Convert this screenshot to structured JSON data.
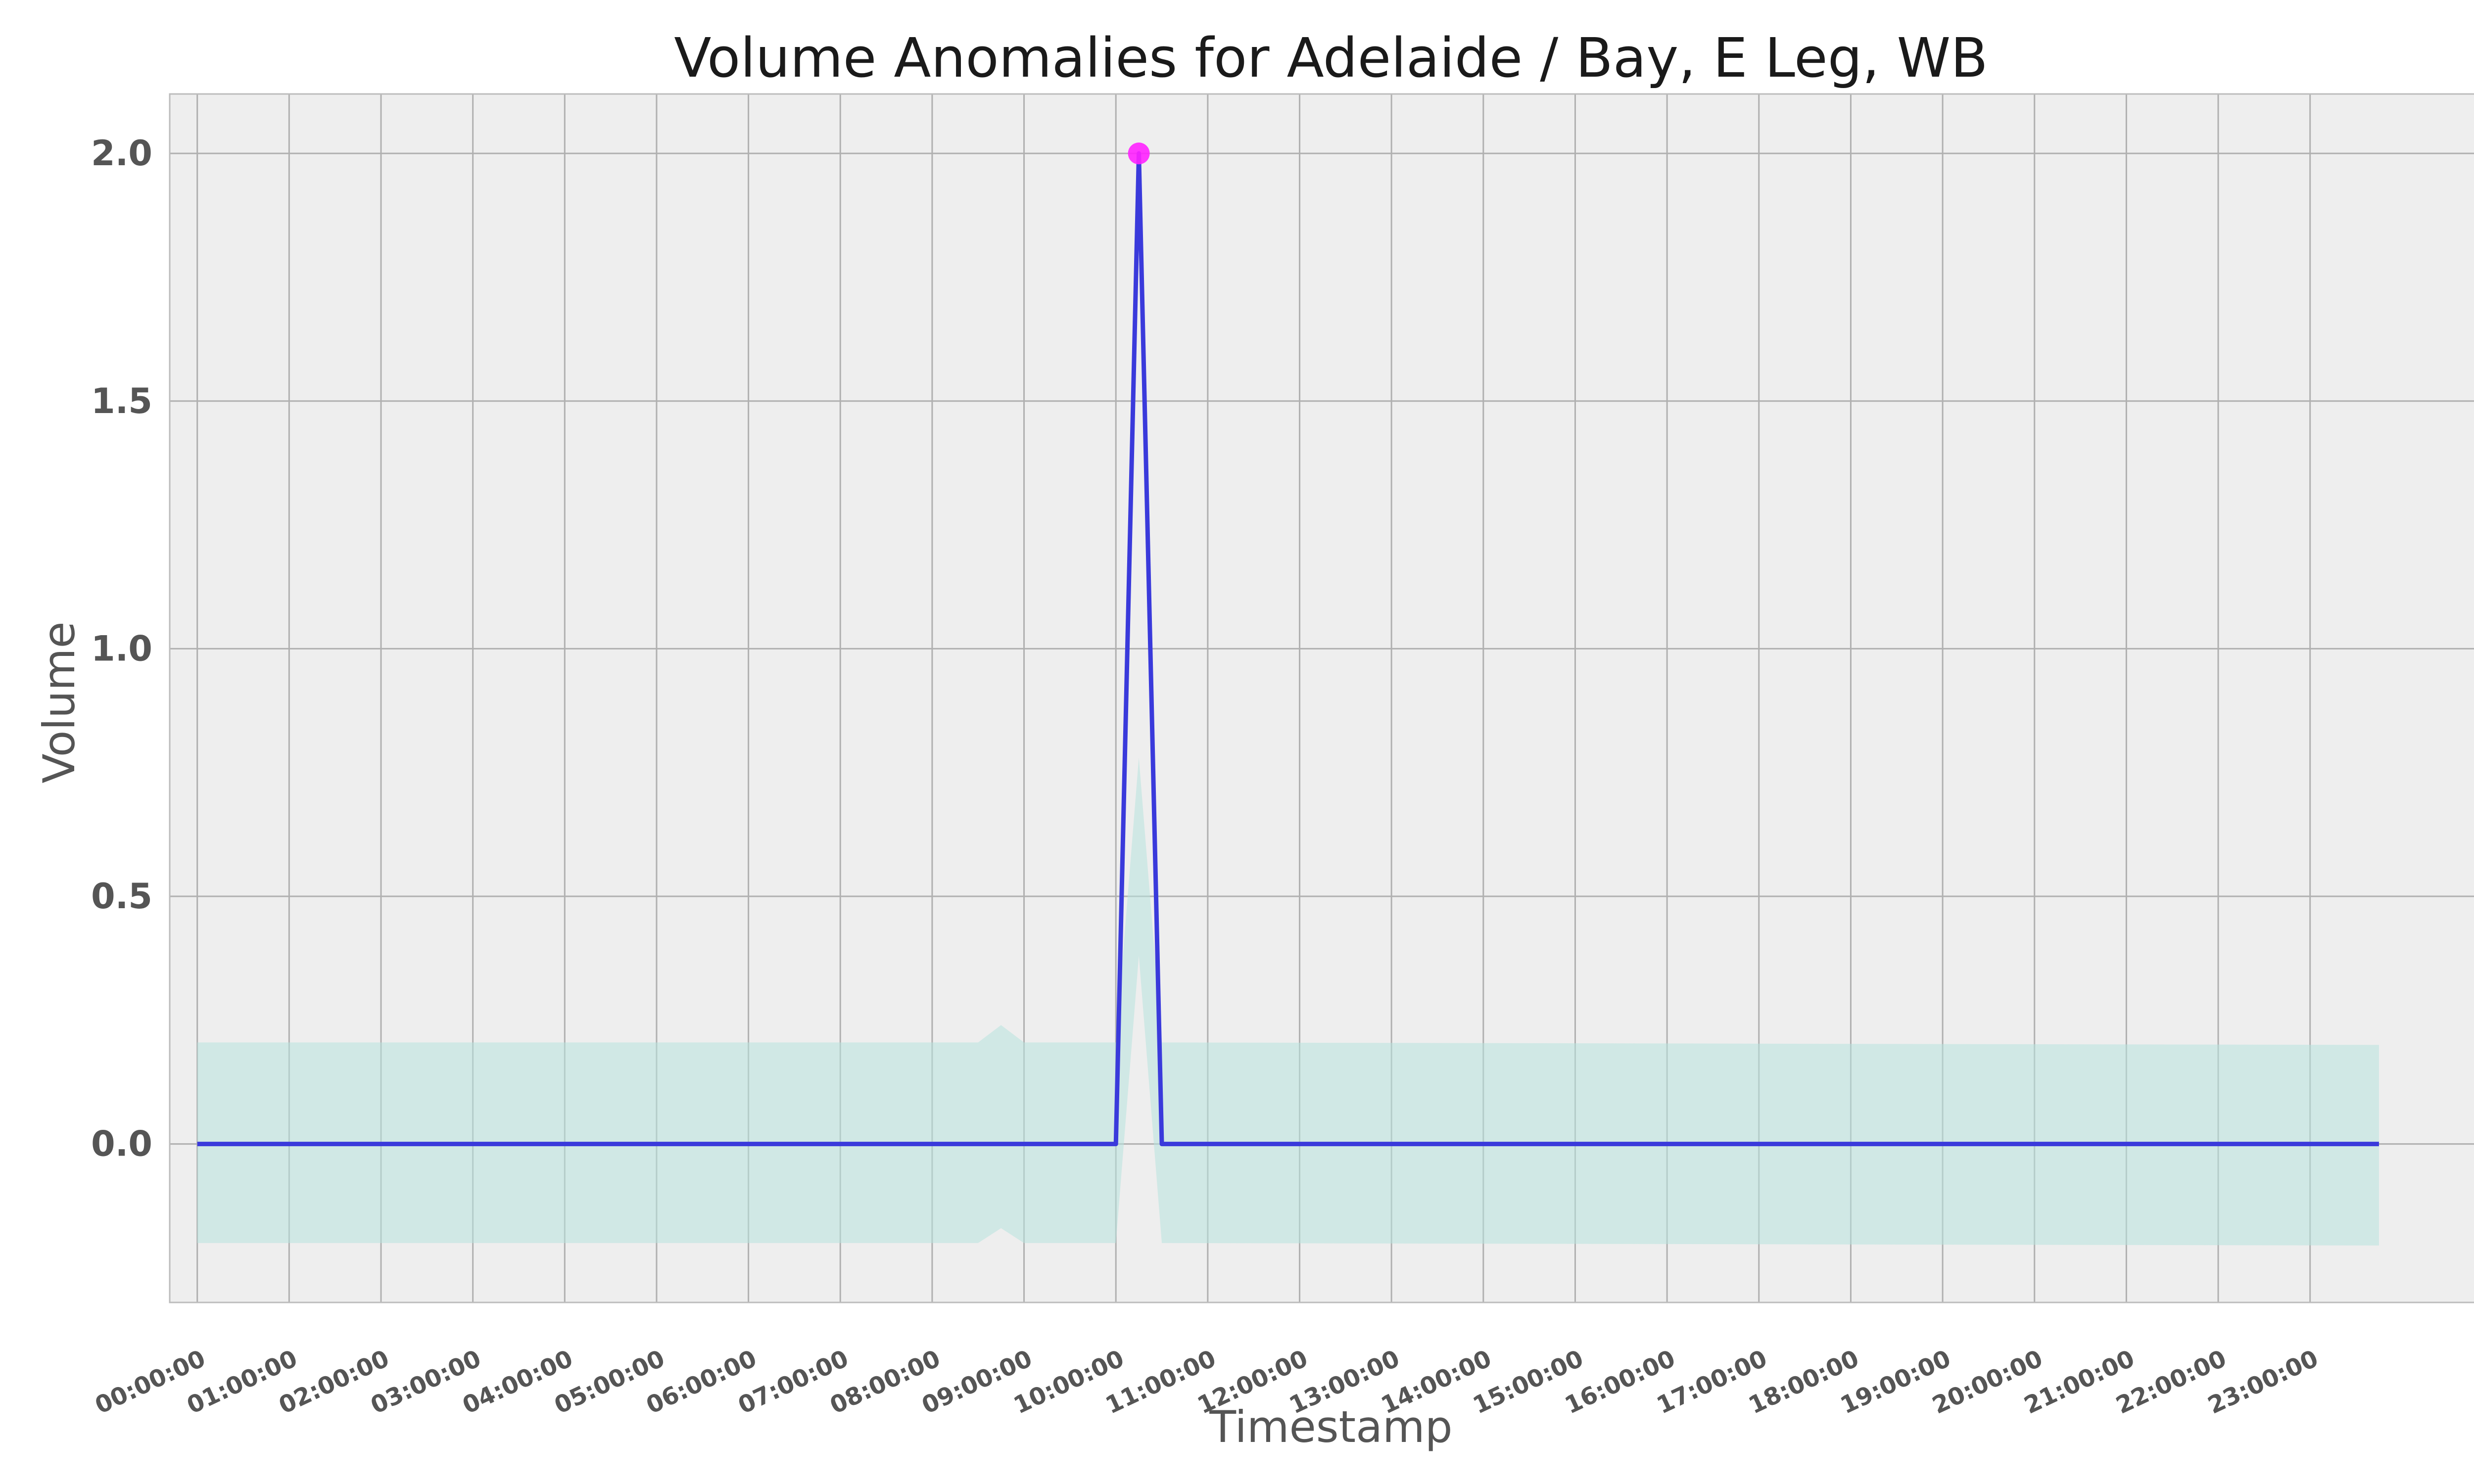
{
  "chart_data": {
    "type": "line",
    "title": "Volume Anomalies for Adelaide / Bay, E Leg, WB",
    "xlabel": "Timestamp",
    "ylabel": "Volume",
    "xlim": [
      -0.3,
      25.0
    ],
    "ylim": [
      -0.32,
      2.12
    ],
    "grid": true,
    "x_ticks": [
      "00:00:00",
      "01:00:00",
      "02:00:00",
      "03:00:00",
      "04:00:00",
      "05:00:00",
      "06:00:00",
      "07:00:00",
      "08:00:00",
      "09:00:00",
      "10:00:00",
      "11:00:00",
      "12:00:00",
      "13:00:00",
      "14:00:00",
      "15:00:00",
      "16:00:00",
      "17:00:00",
      "18:00:00",
      "19:00:00",
      "20:00:00",
      "21:00:00",
      "22:00:00",
      "23:00:00"
    ],
    "y_ticks": [
      {
        "value": 0.0,
        "label": "0.0"
      },
      {
        "value": 0.5,
        "label": "0.5"
      },
      {
        "value": 1.0,
        "label": "1.0"
      },
      {
        "value": 1.5,
        "label": "1.5"
      },
      {
        "value": 2.0,
        "label": "2.0"
      }
    ],
    "series": [
      {
        "color": "#3a3adb",
        "x": [
          0,
          10.0,
          10.25,
          10.5,
          23.75
        ],
        "y": [
          0,
          0,
          2.0,
          0,
          0
        ]
      }
    ],
    "band": {
      "color": "#b8e3de",
      "x": [
        0,
        8.5,
        8.75,
        9.0,
        10.0,
        10.25,
        10.5,
        23.75
      ],
      "upper": [
        0.205,
        0.205,
        0.24,
        0.205,
        0.205,
        0.78,
        0.205,
        0.2
      ],
      "lower": [
        -0.2,
        -0.2,
        -0.17,
        -0.2,
        -0.2,
        0.38,
        -0.2,
        -0.205
      ]
    },
    "anomalies": [
      {
        "x": 10.25,
        "y": 2.0,
        "color": "#ff22ff"
      }
    ]
  }
}
